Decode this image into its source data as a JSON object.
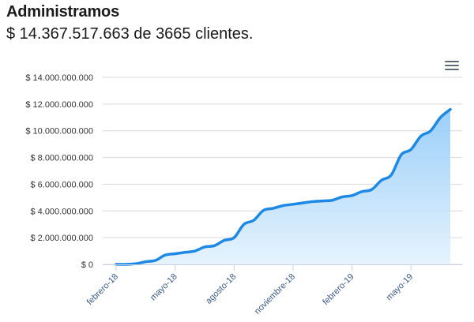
{
  "header": {
    "title": "Administramos",
    "subtitle": "$ 14.367.517.663 de 3665 clientes."
  },
  "menu": {
    "icon": "hamburger-menu-icon"
  },
  "colors": {
    "line": "#1e88e5",
    "area_top": "#90caf9",
    "area_bottom": "#e3f2fd",
    "grid": "#d9d9d9",
    "axis_label": "#333333",
    "x_label": "#3a5a88"
  },
  "chart_data": {
    "type": "area",
    "title": "",
    "xlabel": "",
    "ylabel": "",
    "ylim": [
      0,
      14000000000
    ],
    "grid": true,
    "y_ticks": [
      {
        "value": 0,
        "label": "$ 0"
      },
      {
        "value": 2000000000,
        "label": "$ 2.000.000.000"
      },
      {
        "value": 4000000000,
        "label": "$ 4.000.000.000"
      },
      {
        "value": 6000000000,
        "label": "$ 6.000.000.000"
      },
      {
        "value": 8000000000,
        "label": "$ 8.000.000.000"
      },
      {
        "value": 10000000000,
        "label": "$ 10.000.000.000"
      },
      {
        "value": 12000000000,
        "label": "$ 12.000.000.000"
      },
      {
        "value": 14000000000,
        "label": "$ 14.000.000.000"
      }
    ],
    "x_ticks": [
      {
        "index": 0,
        "label": "febrero-18"
      },
      {
        "index": 3,
        "label": "mayo-18"
      },
      {
        "index": 6,
        "label": "agosto-18"
      },
      {
        "index": 9,
        "label": "noviembre-18"
      },
      {
        "index": 12,
        "label": "febrero-19"
      },
      {
        "index": 15,
        "label": "mayo-19"
      }
    ],
    "series": [
      {
        "values": [
          0,
          0,
          50000000,
          200000000,
          300000000,
          700000000,
          800000000,
          900000000,
          1000000000,
          1300000000,
          1400000000,
          1800000000,
          2000000000,
          3000000000,
          3300000000,
          4050000000,
          4200000000,
          4400000000,
          4500000000,
          4600000000,
          4700000000,
          4750000000,
          4800000000,
          5050000000,
          5150000000,
          5450000000,
          5600000000,
          6300000000,
          6700000000,
          8200000000,
          8600000000,
          9600000000,
          10000000000,
          11000000000,
          11600000000
        ]
      }
    ]
  }
}
